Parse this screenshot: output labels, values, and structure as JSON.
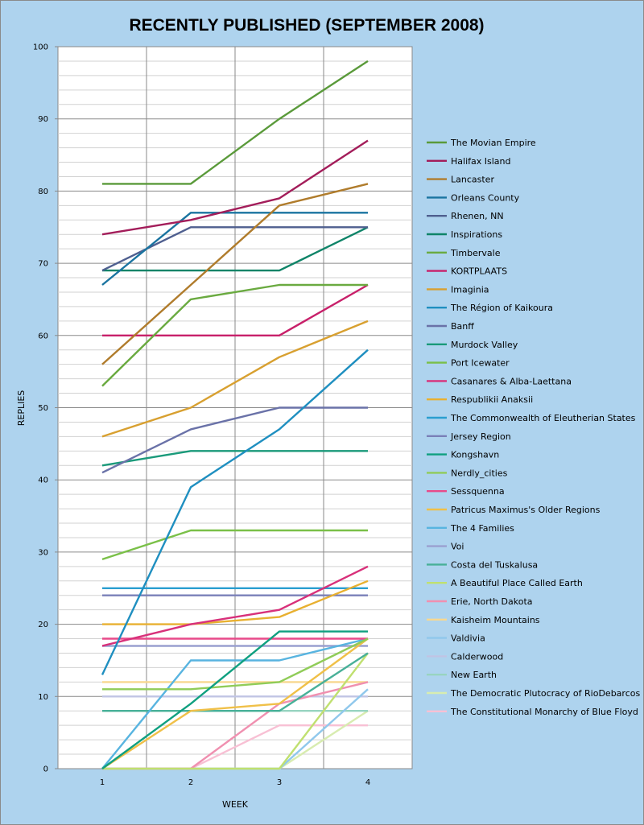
{
  "chart_data": {
    "type": "line",
    "title": "RECENTLY PUBLISHED (SEPTEMBER 2008)",
    "xlabel": "WEEK",
    "ylabel": "REPLIES",
    "x": [
      1,
      2,
      3,
      4
    ],
    "xlim": [
      0.5,
      4.5
    ],
    "ylim": [
      0,
      100
    ],
    "yticks": [
      0,
      10,
      20,
      30,
      40,
      50,
      60,
      70,
      80,
      90,
      100
    ],
    "grid": true,
    "legend_position": "right",
    "series": [
      {
        "name": "The Movian Empire",
        "color": "#5a9a3a",
        "values": [
          81,
          81,
          90,
          98
        ]
      },
      {
        "name": "Halifax Island",
        "color": "#a31d5a",
        "values": [
          74,
          76,
          79,
          87
        ]
      },
      {
        "name": "Lancaster",
        "color": "#b07c2c",
        "values": [
          56,
          67,
          78,
          81
        ]
      },
      {
        "name": "Orleans County",
        "color": "#1a74a0",
        "values": [
          67,
          77,
          77,
          77
        ]
      },
      {
        "name": "Rhenen, NN",
        "color": "#4f5f8f",
        "values": [
          69,
          75,
          75,
          75
        ]
      },
      {
        "name": "Inspirations",
        "color": "#0f8468",
        "values": [
          69,
          69,
          69,
          75
        ]
      },
      {
        "name": "Timbervale",
        "color": "#6aaa40",
        "values": [
          53,
          65,
          67,
          67
        ]
      },
      {
        "name": "KORTPLAATS",
        "color": "#c8206a",
        "values": [
          60,
          60,
          60,
          67
        ]
      },
      {
        "name": "Imaginia",
        "color": "#d8a030",
        "values": [
          46,
          50,
          57,
          62
        ]
      },
      {
        "name": "The Région of Kaikoura",
        "color": "#1f8fc0",
        "values": [
          13,
          39,
          47,
          58
        ]
      },
      {
        "name": "Banff",
        "color": "#6a72a8",
        "values": [
          41,
          47,
          50,
          50
        ]
      },
      {
        "name": "Murdock Valley",
        "color": "#1a9a7a",
        "values": [
          42,
          44,
          44,
          44
        ]
      },
      {
        "name": "Port Icewater",
        "color": "#7ac048",
        "values": [
          29,
          33,
          33,
          33
        ]
      },
      {
        "name": "Casanares & Alba-Laettana",
        "color": "#d8307a",
        "values": [
          17,
          20,
          22,
          28
        ]
      },
      {
        "name": "Respublikii Anaksii",
        "color": "#e8b030",
        "values": [
          20,
          20,
          21,
          26
        ]
      },
      {
        "name": "The Commonwealth of Eleutherian States",
        "color": "#2a9ed0",
        "values": [
          25,
          25,
          25,
          25
        ]
      },
      {
        "name": "Jersey Region",
        "color": "#7a80b8",
        "values": [
          24,
          24,
          24,
          24
        ]
      },
      {
        "name": "Kongshavn",
        "color": "#10a080",
        "values": [
          0,
          9,
          19,
          19
        ]
      },
      {
        "name": "Nerdly_cities",
        "color": "#90cc58",
        "values": [
          11,
          11,
          12,
          18
        ]
      },
      {
        "name": "Sessquenna",
        "color": "#e84a8a",
        "values": [
          18,
          18,
          18,
          18
        ]
      },
      {
        "name": "Patricus Maximus's Older Regions",
        "color": "#f0c048",
        "values": [
          0,
          8,
          9,
          18
        ]
      },
      {
        "name": "The 4 Families",
        "color": "#58b4e0",
        "values": [
          0,
          15,
          15,
          18
        ]
      },
      {
        "name": "Voi",
        "color": "#9aa0d0",
        "values": [
          17,
          17,
          17,
          17
        ]
      },
      {
        "name": "Costa del Tuskalusa",
        "color": "#48b098",
        "values": [
          8,
          8,
          8,
          16
        ]
      },
      {
        "name": "A Beautiful Place Called Earth",
        "color": "#c0e070",
        "values": [
          0,
          0,
          0,
          16
        ]
      },
      {
        "name": "Erie, North Dakota",
        "color": "#f090b0",
        "values": [
          0,
          0,
          9,
          12
        ]
      },
      {
        "name": "Kaisheim Mountains",
        "color": "#f8d890",
        "values": [
          12,
          12,
          12,
          12
        ]
      },
      {
        "name": "Valdivia",
        "color": "#90c8ec",
        "values": [
          0,
          0,
          0,
          11
        ]
      },
      {
        "name": "Calderwood",
        "color": "#c0c4e4",
        "values": [
          10,
          10,
          10,
          10
        ]
      },
      {
        "name": "New Earth",
        "color": "#98d4c0",
        "values": [
          8,
          8,
          8,
          8
        ]
      },
      {
        "name": "The Democratic Plutocracy of RioDebarcos",
        "color": "#d8ecb0",
        "values": [
          0,
          0,
          0,
          8
        ]
      },
      {
        "name": "The Constitutional Monarchy of Blue Floyd",
        "color": "#f8c0d4",
        "values": [
          0,
          0,
          6,
          6
        ]
      }
    ]
  }
}
